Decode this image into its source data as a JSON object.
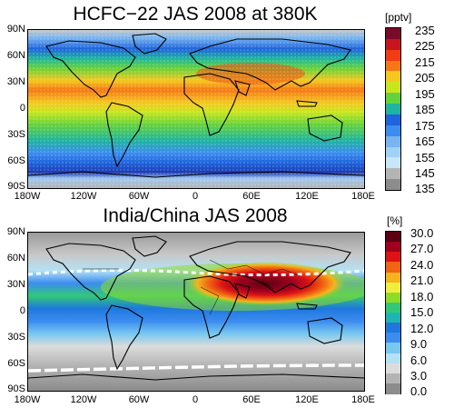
{
  "panels": [
    {
      "title": "HCFC−22 JAS 2008 at 380K",
      "unit": "[pptv]",
      "colorbar_ticks": [
        "235",
        "225",
        "215",
        "205",
        "195",
        "185",
        "175",
        "165",
        "155",
        "145",
        "135"
      ],
      "colorbar_colors": [
        "#7a0a2a",
        "#c8141e",
        "#f03c14",
        "#f57814",
        "#f5c81e",
        "#c8e61e",
        "#64d23c",
        "#1eb4a0",
        "#1e64dc",
        "#3c8cf0",
        "#78b4f0",
        "#a0d2f5",
        "#c8e6fa",
        "#b4b4b4",
        "#8c8c8c"
      ],
      "lat_labels": [
        "90N",
        "60N",
        "30N",
        "0",
        "30S",
        "60S",
        "90S"
      ],
      "lon_labels": [
        "180W",
        "120W",
        "60W",
        "0",
        "60E",
        "120E",
        "180E"
      ]
    },
    {
      "title": "India/China JAS 2008",
      "unit": "[%]",
      "colorbar_ticks": [
        "30.0",
        "27.0",
        "24.0",
        "21.0",
        "18.0",
        "15.0",
        "12.0",
        "9.0",
        "6.0",
        "3.0",
        "0.0"
      ],
      "colorbar_colors": [
        "#5a0010",
        "#a00020",
        "#dc1414",
        "#f06414",
        "#f5b41e",
        "#f0f03c",
        "#8cdc28",
        "#32c878",
        "#1eb4b4",
        "#1e78dc",
        "#3c8cf0",
        "#78c8f0",
        "#b4e1f5",
        "#dcdcdc",
        "#b4b4b4",
        "#8c8c8c"
      ],
      "lat_labels": [
        "90N",
        "60N",
        "30N",
        "0",
        "30S",
        "60S",
        "90S"
      ],
      "lon_labels": [
        "180W",
        "120W",
        "60W",
        "0",
        "60E",
        "120E",
        "180E"
      ]
    }
  ]
}
